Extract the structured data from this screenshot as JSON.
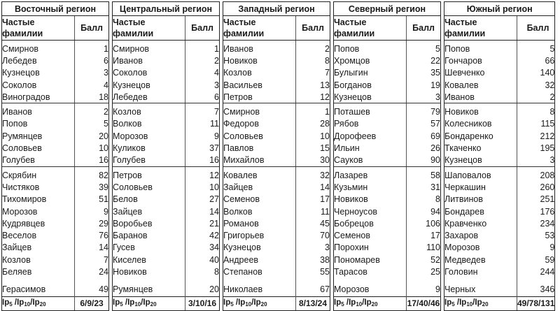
{
  "table": {
    "col_name_header": "Частые фамилии",
    "col_name_header_line1": "Частые",
    "col_name_header_line2": "фамилии",
    "col_score_header": "Балл",
    "footer_label": "Ip5 /Ip10/Ip20",
    "regions": [
      {
        "title": "Восточный регион",
        "footer_value": "6/9/23",
        "rows": [
          {
            "name": "Смирнов",
            "score": "1"
          },
          {
            "name": "Лебедев",
            "score": "6"
          },
          {
            "name": "Кузнецов",
            "score": "3"
          },
          {
            "name": "Соколов",
            "score": "4"
          },
          {
            "name": "Виноградов",
            "score": "18"
          },
          {
            "name": "Иванов",
            "score": "2"
          },
          {
            "name": "Попов",
            "score": "5"
          },
          {
            "name": "Румянцев",
            "score": "20"
          },
          {
            "name": "Соловьев",
            "score": "10"
          },
          {
            "name": "Голубев",
            "score": "16"
          },
          {
            "name": "Скрябин",
            "score": "82"
          },
          {
            "name": "Чистяков",
            "score": "39"
          },
          {
            "name": "Тихомиров",
            "score": "51"
          },
          {
            "name": "Морозов",
            "score": "9"
          },
          {
            "name": "Кудрявцев",
            "score": "29"
          },
          {
            "name": "Веселов",
            "score": "76"
          },
          {
            "name": "Зайцев",
            "score": "14"
          },
          {
            "name": "Козлов",
            "score": "7"
          },
          {
            "name": "Беляев",
            "score": "24"
          },
          {
            "name": "Герасимов",
            "score": "49"
          }
        ]
      },
      {
        "title": "Центральный регион",
        "footer_value": "3/10/16",
        "rows": [
          {
            "name": "Смирнов",
            "score": "1"
          },
          {
            "name": "Иванов",
            "score": "2"
          },
          {
            "name": "Соколов",
            "score": "4"
          },
          {
            "name": "Кузнецов",
            "score": "3"
          },
          {
            "name": "Лебедев",
            "score": "6"
          },
          {
            "name": "Козлов",
            "score": "7"
          },
          {
            "name": "Волков",
            "score": "11"
          },
          {
            "name": "Морозов",
            "score": "9"
          },
          {
            "name": "Куликов",
            "score": "37"
          },
          {
            "name": "Голубев",
            "score": "16"
          },
          {
            "name": "Петров",
            "score": "12"
          },
          {
            "name": "Соловьев",
            "score": "10"
          },
          {
            "name": "Белов",
            "score": "27"
          },
          {
            "name": "Зайцев",
            "score": "14"
          },
          {
            "name": "Воробьев",
            "score": "21"
          },
          {
            "name": "Баранов",
            "score": "42"
          },
          {
            "name": "Гусев",
            "score": "34"
          },
          {
            "name": "Киселев",
            "score": "40"
          },
          {
            "name": "Новиков",
            "score": "8"
          },
          {
            "name": "Румянцев",
            "score": "20"
          }
        ]
      },
      {
        "title": "Западный регион",
        "footer_value": "8/13/24",
        "rows": [
          {
            "name": "Иванов",
            "score": "2"
          },
          {
            "name": "Новиков",
            "score": "8"
          },
          {
            "name": "Козлов",
            "score": "7"
          },
          {
            "name": "Васильев",
            "score": "13"
          },
          {
            "name": "Петров",
            "score": "12"
          },
          {
            "name": "Смирнов",
            "score": "1"
          },
          {
            "name": "Федоров",
            "score": "28"
          },
          {
            "name": "Соловьев",
            "score": "10"
          },
          {
            "name": "Павлов",
            "score": "15"
          },
          {
            "name": "Михайлов",
            "score": "30"
          },
          {
            "name": "Ковалев",
            "score": "32"
          },
          {
            "name": "Зайцев",
            "score": "14"
          },
          {
            "name": "Семенов",
            "score": "17"
          },
          {
            "name": "Волков",
            "score": "11"
          },
          {
            "name": "Романов",
            "score": "45"
          },
          {
            "name": "Григорьев",
            "score": "70"
          },
          {
            "name": "Кузнецов",
            "score": "3"
          },
          {
            "name": "Андреев",
            "score": "38"
          },
          {
            "name": "Степанов",
            "score": "55"
          },
          {
            "name": "Николаев",
            "score": "67"
          }
        ]
      },
      {
        "title": "Северный регион",
        "footer_value": "17/40/46",
        "rows": [
          {
            "name": "Попов",
            "score": "5"
          },
          {
            "name": "Хромцов",
            "score": "22"
          },
          {
            "name": "Булыгин",
            "score": "35"
          },
          {
            "name": "Богданов",
            "score": "19"
          },
          {
            "name": "Кузнецов",
            "score": "3"
          },
          {
            "name": "Поташев",
            "score": "79"
          },
          {
            "name": "Рябов",
            "score": "57"
          },
          {
            "name": "Дорофеев",
            "score": "69"
          },
          {
            "name": "Ильин",
            "score": "26"
          },
          {
            "name": "Сауков",
            "score": "90"
          },
          {
            "name": "Лазарев",
            "score": "58"
          },
          {
            "name": "Кузьмин",
            "score": "31"
          },
          {
            "name": "Новиков",
            "score": "8"
          },
          {
            "name": "Черноусов",
            "score": "94"
          },
          {
            "name": "Бобрецов",
            "score": "106"
          },
          {
            "name": "Семенов",
            "score": "17"
          },
          {
            "name": "Порохин",
            "score": "110"
          },
          {
            "name": "Пономарев",
            "score": "52"
          },
          {
            "name": "Тарасов",
            "score": "25"
          },
          {
            "name": "Морозов",
            "score": "9"
          }
        ]
      },
      {
        "title": "Южный регион",
        "footer_value": "49/78/131",
        "rows": [
          {
            "name": "Попов",
            "score": "5"
          },
          {
            "name": "Гончаров",
            "score": "66"
          },
          {
            "name": "Шевченко",
            "score": "140"
          },
          {
            "name": "Ковалев",
            "score": "32"
          },
          {
            "name": "Иванов",
            "score": "2"
          },
          {
            "name": "Новиков",
            "score": "8"
          },
          {
            "name": "Колесников",
            "score": "115"
          },
          {
            "name": "Бондаренко",
            "score": "212"
          },
          {
            "name": "Ткаченко",
            "score": "195"
          },
          {
            "name": "Кузнецов",
            "score": "3"
          },
          {
            "name": "Шаповалов",
            "score": "208"
          },
          {
            "name": "Черкашин",
            "score": "260"
          },
          {
            "name": "Литвинов",
            "score": "251"
          },
          {
            "name": "Бондарев",
            "score": "176"
          },
          {
            "name": "Кравченко",
            "score": "234"
          },
          {
            "name": "Захаров",
            "score": "53"
          },
          {
            "name": "Морозов",
            "score": "9"
          },
          {
            "name": "Медведев",
            "score": "59"
          },
          {
            "name": "Головин",
            "score": "244"
          },
          {
            "name": "Черных",
            "score": "346"
          }
        ]
      }
    ]
  }
}
